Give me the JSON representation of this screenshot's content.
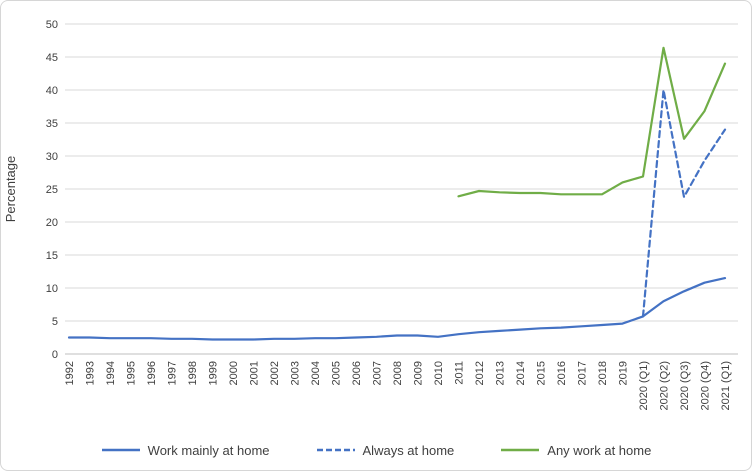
{
  "chart_data": {
    "type": "line",
    "title": "",
    "xlabel": "",
    "ylabel": "Percentage",
    "ylim": [
      0,
      50
    ],
    "yticks": [
      0,
      5,
      10,
      15,
      20,
      25,
      30,
      35,
      40,
      45,
      50
    ],
    "grid": "horizontal",
    "legend_position": "bottom",
    "categories": [
      "1992",
      "1993",
      "1994",
      "1995",
      "1996",
      "1997",
      "1998",
      "1999",
      "2000",
      "2001",
      "2002",
      "2003",
      "2004",
      "2005",
      "2006",
      "2007",
      "2008",
      "2009",
      "2010",
      "2011",
      "2012",
      "2013",
      "2014",
      "2015",
      "2016",
      "2017",
      "2018",
      "2019",
      "2020 (Q1)",
      "2020 (Q2)",
      "2020 (Q3)",
      "2020 (Q4)",
      "2021 (Q1)"
    ],
    "series": [
      {
        "name": "Work mainly at home",
        "color": "#4472c4",
        "line_style": "solid",
        "values": [
          2.5,
          2.5,
          2.4,
          2.4,
          2.4,
          2.3,
          2.3,
          2.2,
          2.2,
          2.2,
          2.3,
          2.3,
          2.4,
          2.4,
          2.5,
          2.6,
          2.8,
          2.8,
          2.6,
          3.0,
          3.3,
          3.5,
          3.7,
          3.9,
          4.0,
          4.2,
          4.4,
          4.6,
          5.7,
          8.0,
          9.5,
          10.8,
          11.5
        ]
      },
      {
        "name": "Always at home",
        "color": "#4472c4",
        "line_style": "dashed",
        "values": [
          null,
          null,
          null,
          null,
          null,
          null,
          null,
          null,
          null,
          null,
          null,
          null,
          null,
          null,
          null,
          null,
          null,
          null,
          null,
          null,
          null,
          null,
          null,
          null,
          null,
          null,
          null,
          null,
          5.7,
          40.0,
          23.8,
          29.3,
          34.0
        ]
      },
      {
        "name": "Any work at home",
        "color": "#70ad47",
        "line_style": "solid",
        "values": [
          null,
          null,
          null,
          null,
          null,
          null,
          null,
          null,
          null,
          null,
          null,
          null,
          null,
          null,
          null,
          null,
          null,
          null,
          null,
          23.9,
          24.7,
          24.5,
          24.4,
          24.4,
          24.2,
          24.2,
          24.2,
          26.0,
          26.9,
          46.4,
          32.6,
          36.8,
          44.0
        ]
      }
    ],
    "colors": {
      "grid": "#d9d9d9",
      "axis_line": "#bfbfbf",
      "text": "#404040"
    }
  }
}
